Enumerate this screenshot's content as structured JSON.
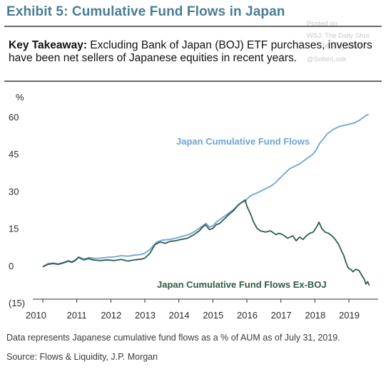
{
  "header": {
    "title": "Exhibit 5: Cumulative Fund Flows in Japan",
    "watermark_lines": [
      "Posted on",
      "WSJ: The Daily Shot",
      "08-Aug-2019",
      "@SoberLook"
    ]
  },
  "takeaway": {
    "label": "Key Takeaway:",
    "text": " Excluding Bank of Japan (BOJ) ETF purchases, investors have been net sellers of Japanese equities in recent years."
  },
  "footer": {
    "note": "Data represents Japanese cumulative fund flows as a % of AUM as of July 31, 2019.",
    "source": "Source: Flows & Liquidity, J.P. Morgan"
  },
  "colors": {
    "series_total": "#6fa3d6",
    "series_exboj": "#2f5d47",
    "title": "#4a7d94"
  },
  "chart_data": {
    "type": "line",
    "ylabel": "%",
    "ylim": [
      -15,
      62
    ],
    "xlim": [
      2010,
      2019.65
    ],
    "yticks": [
      60,
      45,
      30,
      15,
      0,
      -15
    ],
    "ytick_labels": [
      "60",
      "45",
      "30",
      "15",
      "0",
      "(15)"
    ],
    "xticks": [
      2010,
      2011,
      2012,
      2013,
      2014,
      2015,
      2016,
      2017,
      2018,
      2019
    ],
    "xtick_labels": [
      "2010",
      "2011",
      "2012",
      "2013",
      "2014",
      "2015",
      "2016",
      "2017",
      "2018",
      "2019"
    ],
    "grid": false,
    "series": [
      {
        "name": "Japan Cumulative Fund Flows",
        "points": [
          [
            2010.0,
            -0.5
          ],
          [
            2010.15,
            0.8
          ],
          [
            2010.3,
            1.0
          ],
          [
            2010.45,
            0.7
          ],
          [
            2010.6,
            1.2
          ],
          [
            2010.75,
            2.0
          ],
          [
            2010.85,
            1.5
          ],
          [
            2010.95,
            2.2
          ],
          [
            2011.05,
            3.5
          ],
          [
            2011.2,
            2.6
          ],
          [
            2011.35,
            3.2
          ],
          [
            2011.5,
            2.9
          ],
          [
            2011.7,
            3.0
          ],
          [
            2011.9,
            3.3
          ],
          [
            2012.1,
            3.5
          ],
          [
            2012.3,
            4.0
          ],
          [
            2012.5,
            3.8
          ],
          [
            2012.7,
            4.2
          ],
          [
            2012.9,
            4.5
          ],
          [
            2013.0,
            5.0
          ],
          [
            2013.15,
            6.5
          ],
          [
            2013.35,
            9.5
          ],
          [
            2013.5,
            10.2
          ],
          [
            2013.7,
            10.5
          ],
          [
            2013.9,
            11.0
          ],
          [
            2014.1,
            11.8
          ],
          [
            2014.3,
            12.5
          ],
          [
            2014.5,
            14.0
          ],
          [
            2014.7,
            16.0
          ],
          [
            2014.8,
            17.0
          ],
          [
            2014.9,
            15.5
          ],
          [
            2015.0,
            16.0
          ],
          [
            2015.1,
            17.5
          ],
          [
            2015.2,
            18.5
          ],
          [
            2015.35,
            20.0
          ],
          [
            2015.5,
            21.5
          ],
          [
            2015.6,
            22.5
          ],
          [
            2015.75,
            24.5
          ],
          [
            2015.85,
            25.5
          ],
          [
            2015.95,
            26.0
          ],
          [
            2016.05,
            27.5
          ],
          [
            2016.15,
            28.5
          ],
          [
            2016.25,
            29.0
          ],
          [
            2016.4,
            30.0
          ],
          [
            2016.55,
            31.0
          ],
          [
            2016.7,
            32.0
          ],
          [
            2016.85,
            33.5
          ],
          [
            2016.95,
            35.0
          ],
          [
            2017.1,
            37.0
          ],
          [
            2017.25,
            39.0
          ],
          [
            2017.4,
            40.0
          ],
          [
            2017.55,
            41.0
          ],
          [
            2017.7,
            42.5
          ],
          [
            2017.85,
            44.0
          ],
          [
            2017.95,
            45.0
          ],
          [
            2018.05,
            47.0
          ],
          [
            2018.15,
            49.5
          ],
          [
            2018.25,
            51.0
          ],
          [
            2018.35,
            53.0
          ],
          [
            2018.45,
            54.0
          ],
          [
            2018.55,
            55.0
          ],
          [
            2018.7,
            56.0
          ],
          [
            2018.85,
            56.5
          ],
          [
            2019.0,
            57.0
          ],
          [
            2019.15,
            57.5
          ],
          [
            2019.3,
            58.5
          ],
          [
            2019.4,
            59.5
          ],
          [
            2019.5,
            60.5
          ],
          [
            2019.58,
            61.0
          ]
        ],
        "label": "Japan Cumulative Fund Flows",
        "color_key": "series_total"
      },
      {
        "name": "Japan Cumulative Fund Flows Ex-BOJ",
        "points": [
          [
            2010.0,
            -0.5
          ],
          [
            2010.15,
            0.5
          ],
          [
            2010.3,
            0.8
          ],
          [
            2010.45,
            0.5
          ],
          [
            2010.6,
            1.0
          ],
          [
            2010.75,
            1.8
          ],
          [
            2010.85,
            1.3
          ],
          [
            2010.95,
            2.0
          ],
          [
            2011.05,
            3.3
          ],
          [
            2011.2,
            2.3
          ],
          [
            2011.35,
            2.8
          ],
          [
            2011.5,
            2.2
          ],
          [
            2011.7,
            2.0
          ],
          [
            2011.9,
            2.3
          ],
          [
            2012.1,
            2.0
          ],
          [
            2012.3,
            2.5
          ],
          [
            2012.5,
            1.8
          ],
          [
            2012.7,
            2.3
          ],
          [
            2012.9,
            2.6
          ],
          [
            2013.0,
            3.0
          ],
          [
            2013.15,
            5.0
          ],
          [
            2013.3,
            8.5
          ],
          [
            2013.45,
            9.5
          ],
          [
            2013.6,
            9.0
          ],
          [
            2013.75,
            9.8
          ],
          [
            2013.9,
            10.0
          ],
          [
            2014.05,
            10.5
          ],
          [
            2014.25,
            11.0
          ],
          [
            2014.45,
            12.5
          ],
          [
            2014.6,
            14.0
          ],
          [
            2014.7,
            15.5
          ],
          [
            2014.78,
            16.5
          ],
          [
            2014.9,
            14.5
          ],
          [
            2015.0,
            15.0
          ],
          [
            2015.1,
            16.5
          ],
          [
            2015.2,
            17.0
          ],
          [
            2015.35,
            19.0
          ],
          [
            2015.5,
            21.0
          ],
          [
            2015.6,
            22.0
          ],
          [
            2015.75,
            24.5
          ],
          [
            2015.85,
            25.5
          ],
          [
            2015.95,
            26.5
          ],
          [
            2016.0,
            24.0
          ],
          [
            2016.1,
            21.0
          ],
          [
            2016.2,
            17.5
          ],
          [
            2016.3,
            15.0
          ],
          [
            2016.4,
            14.0
          ],
          [
            2016.55,
            13.5
          ],
          [
            2016.7,
            14.0
          ],
          [
            2016.85,
            12.5
          ],
          [
            2016.95,
            13.0
          ],
          [
            2017.05,
            12.5
          ],
          [
            2017.2,
            11.0
          ],
          [
            2017.35,
            12.0
          ],
          [
            2017.45,
            10.0
          ],
          [
            2017.55,
            11.5
          ],
          [
            2017.65,
            10.5
          ],
          [
            2017.75,
            12.0
          ],
          [
            2017.85,
            13.0
          ],
          [
            2017.95,
            13.5
          ],
          [
            2018.05,
            15.5
          ],
          [
            2018.12,
            17.5
          ],
          [
            2018.2,
            15.0
          ],
          [
            2018.3,
            13.5
          ],
          [
            2018.4,
            13.0
          ],
          [
            2018.5,
            12.0
          ],
          [
            2018.6,
            10.5
          ],
          [
            2018.7,
            8.5
          ],
          [
            2018.78,
            6.0
          ],
          [
            2018.85,
            4.0
          ],
          [
            2018.92,
            1.0
          ],
          [
            2018.98,
            -1.0
          ],
          [
            2019.05,
            -1.5
          ],
          [
            2019.12,
            -2.5
          ],
          [
            2019.2,
            -1.5
          ],
          [
            2019.3,
            -2.0
          ],
          [
            2019.38,
            -4.0
          ],
          [
            2019.45,
            -5.5
          ],
          [
            2019.5,
            -7.5
          ],
          [
            2019.55,
            -6.5
          ],
          [
            2019.6,
            -8.0
          ]
        ],
        "label": "Japan Cumulative Fund Flows Ex-BOJ",
        "color_key": "series_exboj"
      }
    ]
  }
}
